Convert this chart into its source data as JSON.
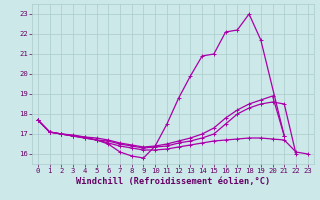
{
  "xlabel": "Windchill (Refroidissement éolien,°C)",
  "bg_color": "#cce8e8",
  "line_color": "#aa00aa",
  "xlim": [
    -0.5,
    23.5
  ],
  "ylim": [
    15.5,
    23.5
  ],
  "yticks": [
    16,
    17,
    18,
    19,
    20,
    21,
    22,
    23
  ],
  "xticks": [
    0,
    1,
    2,
    3,
    4,
    5,
    6,
    7,
    8,
    9,
    10,
    11,
    12,
    13,
    14,
    15,
    16,
    17,
    18,
    19,
    20,
    21,
    22,
    23
  ],
  "lines": [
    {
      "x": [
        0,
        1,
        2,
        3,
        4,
        5,
        6,
        7,
        8,
        9,
        10,
        11,
        12,
        13,
        14,
        15,
        16,
        17,
        18,
        19,
        20,
        21
      ],
      "y": [
        17.7,
        17.1,
        17.0,
        16.9,
        16.8,
        16.7,
        16.5,
        16.1,
        15.9,
        15.8,
        16.4,
        17.5,
        18.8,
        19.9,
        20.9,
        21.0,
        22.1,
        22.2,
        23.0,
        21.7,
        null,
        16.9
      ]
    },
    {
      "x": [
        0,
        1,
        2,
        3,
        4,
        5,
        6,
        7,
        8,
        9,
        10,
        11,
        12,
        13,
        14,
        15,
        16,
        17,
        18,
        19,
        20,
        21,
        22
      ],
      "y": [
        17.7,
        17.1,
        17.0,
        16.9,
        16.85,
        16.8,
        16.7,
        16.55,
        16.45,
        16.35,
        16.4,
        16.5,
        16.65,
        16.8,
        17.0,
        17.3,
        17.8,
        18.2,
        18.5,
        18.7,
        18.9,
        16.9,
        null
      ]
    },
    {
      "x": [
        0,
        1,
        2,
        3,
        4,
        5,
        6,
        7,
        8,
        9,
        10,
        11,
        12,
        13,
        14,
        15,
        16,
        17,
        18,
        19,
        20,
        21,
        22,
        23
      ],
      "y": [
        17.7,
        17.1,
        17.0,
        16.9,
        16.8,
        16.7,
        16.65,
        16.5,
        16.4,
        16.3,
        16.35,
        16.4,
        16.55,
        16.65,
        16.8,
        17.0,
        17.5,
        18.0,
        18.3,
        18.5,
        18.6,
        18.5,
        16.0,
        null
      ]
    },
    {
      "x": [
        0,
        1,
        2,
        3,
        4,
        5,
        6,
        7,
        8,
        9,
        10,
        11,
        12,
        13,
        14,
        15,
        16,
        17,
        18,
        19,
        20,
        21,
        22,
        23
      ],
      "y": [
        17.7,
        17.1,
        17.0,
        16.95,
        16.85,
        16.7,
        16.55,
        16.4,
        16.3,
        16.2,
        16.2,
        16.25,
        16.35,
        16.45,
        16.55,
        16.65,
        16.7,
        16.75,
        16.8,
        16.8,
        16.75,
        16.7,
        16.1,
        16.0
      ]
    }
  ],
  "marker": "+",
  "markersize": 3,
  "linewidth": 0.9,
  "grid_color": "#aacccc",
  "tick_labelsize": 5.2,
  "xlabel_fontsize": 6.2,
  "xlabel_color": "#660066",
  "tick_color": "#660066"
}
